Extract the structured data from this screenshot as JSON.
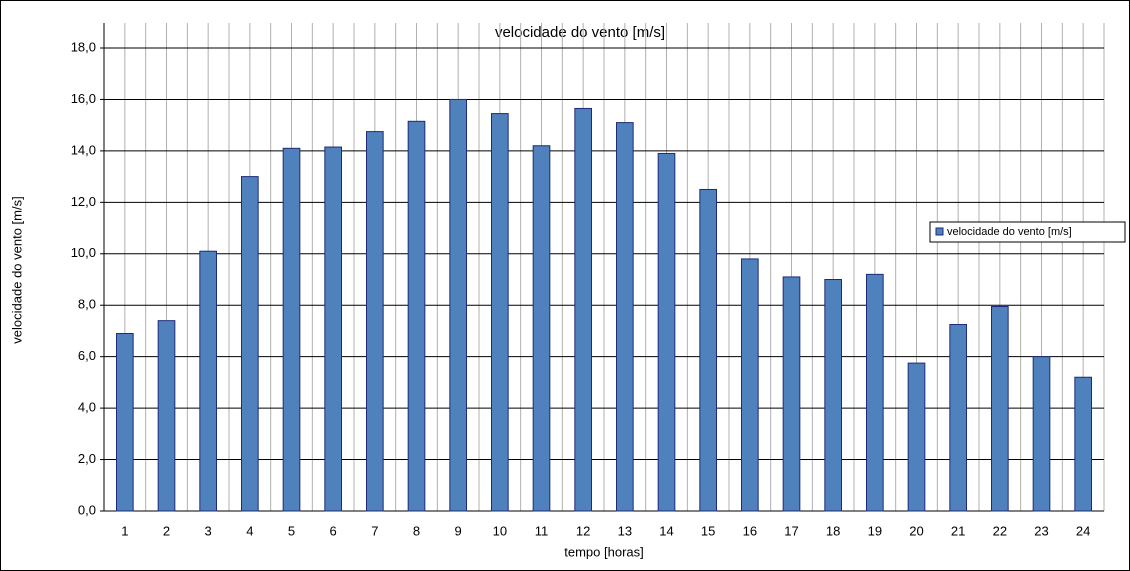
{
  "chart_data": {
    "type": "bar",
    "title": "velocidade do vento [m/s]",
    "x_label": "tempo [horas]",
    "y_label": "velocidade do vento [m/s]",
    "categories": [
      "1",
      "2",
      "3",
      "4",
      "5",
      "6",
      "7",
      "8",
      "9",
      "10",
      "11",
      "12",
      "13",
      "14",
      "15",
      "16",
      "17",
      "18",
      "19",
      "20",
      "21",
      "22",
      "23",
      "24"
    ],
    "series": [
      {
        "name": "velocidade do vento [m/s]",
        "color": "#4f81bd",
        "values": [
          6.9,
          7.4,
          10.1,
          13.0,
          14.1,
          14.15,
          14.75,
          15.15,
          16.0,
          15.45,
          14.2,
          15.65,
          15.1,
          13.9,
          12.5,
          9.8,
          9.1,
          9.0,
          9.2,
          5.75,
          7.25,
          7.95,
          6.0,
          5.2
        ]
      }
    ],
    "ylim": [
      0,
      18
    ],
    "yticks": [
      {
        "value": 0,
        "label": "0,0"
      },
      {
        "value": 2,
        "label": "2,0"
      },
      {
        "value": 4,
        "label": "4,0"
      },
      {
        "value": 6,
        "label": "6,0"
      },
      {
        "value": 8,
        "label": "8,0"
      },
      {
        "value": 10,
        "label": "10,0"
      },
      {
        "value": 12,
        "label": "12,0"
      },
      {
        "value": 14,
        "label": "14,0"
      },
      {
        "value": 16,
        "label": "16,0"
      },
      {
        "value": 18,
        "label": "18,0"
      }
    ],
    "grid": true,
    "legend": "right"
  }
}
